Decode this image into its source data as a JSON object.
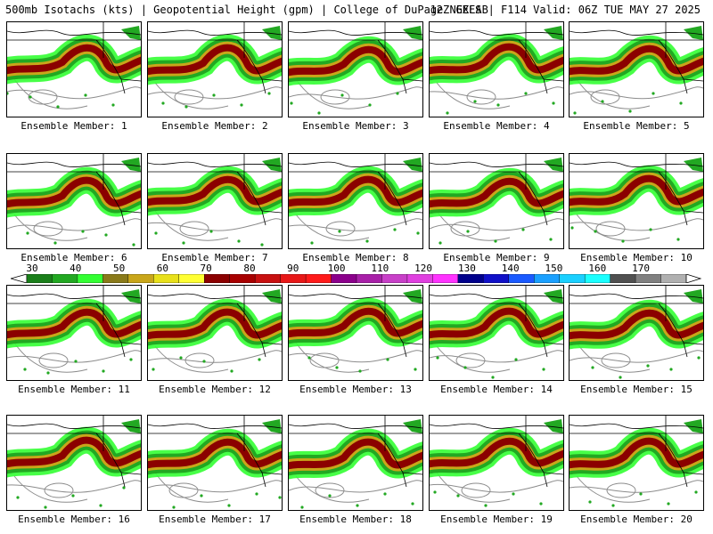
{
  "header": {
    "left": "500mb Isotachs (kts) | Geopotential Height (gpm) | College of DuPage NEXLAB",
    "right": "12Z GEFS | F114 Valid: 06Z TUE MAY 27 2025"
  },
  "colorbar": {
    "ticks": [
      "30",
      "40",
      "50",
      "60",
      "70",
      "80",
      "90",
      "100",
      "110",
      "120",
      "130",
      "140",
      "150",
      "160",
      "170"
    ],
    "colors": [
      "#1a7f1a",
      "#22a822",
      "#33ff33",
      "#8a7a1a",
      "#c9a61a",
      "#e8e01a",
      "#ffff33",
      "#8b0000",
      "#a80000",
      "#c81010",
      "#e81818",
      "#ff1a1a",
      "#8b008b",
      "#a820a8",
      "#c840c8",
      "#e040e0",
      "#ff33ff",
      "#00008b",
      "#1010c8",
      "#1a5aff",
      "#1aa0ff",
      "#1ad0ff",
      "#1affff",
      "#505050",
      "#808080",
      "#b0b0b0"
    ]
  },
  "map_colors": {
    "outline": "#000000",
    "height_contour": "#8c8c8c",
    "jet_core": "#8b0000",
    "jet_mid": "#c9a61a",
    "jet_edge": "#22a822",
    "jet_fringe": "#33ff33"
  },
  "panels": [
    {
      "label": "Ensemble Member: 1"
    },
    {
      "label": "Ensemble Member: 2"
    },
    {
      "label": "Ensemble Member: 3"
    },
    {
      "label": "Ensemble Member: 4"
    },
    {
      "label": "Ensemble Member: 5"
    },
    {
      "label": "Ensemble Member: 6"
    },
    {
      "label": "Ensemble Member: 7"
    },
    {
      "label": "Ensemble Member: 8"
    },
    {
      "label": "Ensemble Member: 9"
    },
    {
      "label": "Ensemble Member: 10"
    },
    {
      "label": "Ensemble Member: 11"
    },
    {
      "label": "Ensemble Member: 12"
    },
    {
      "label": "Ensemble Member: 13"
    },
    {
      "label": "Ensemble Member: 14"
    },
    {
      "label": "Ensemble Member: 15"
    },
    {
      "label": "Ensemble Member: 16"
    },
    {
      "label": "Ensemble Member: 17"
    },
    {
      "label": "Ensemble Member: 18"
    },
    {
      "label": "Ensemble Member: 19"
    },
    {
      "label": "Ensemble Member: 20"
    }
  ]
}
